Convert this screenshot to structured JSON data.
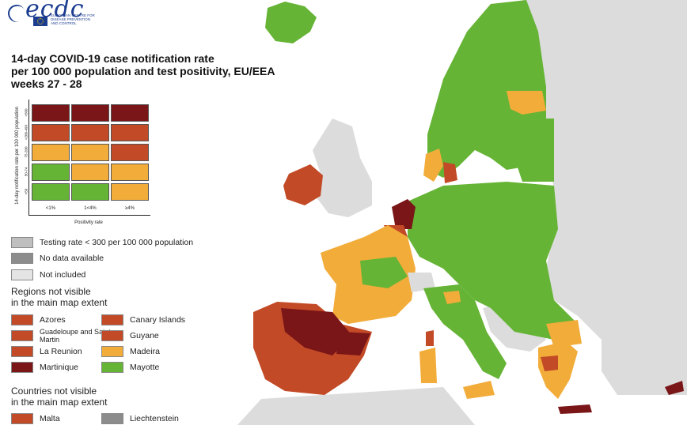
{
  "logo": {
    "text": "ecdc",
    "sub": "EUROPEAN CENTRE FOR DISEASE PREVENTION AND CONTROL"
  },
  "title": {
    "line1": "14-day COVID-19 case notification rate",
    "line2": "per 100 000 population and test positivity, EU/EEA",
    "line3": "weeks 27 - 28"
  },
  "colors": {
    "green": "#66b436",
    "orange": "#f2ac3a",
    "red": "#c24a26",
    "darkred": "#7a1518",
    "testing_low": "#bfbfbf",
    "no_data": "#8c8c8c",
    "not_included": "#e4e4e4",
    "sea": "#ffffff"
  },
  "matrix": {
    "y_axis_label": "14-day notification rate per 100 000 population",
    "x_axis_title": "Positivity rate",
    "rows": [
      ">500",
      ">200-499",
      "75-200",
      "50-74",
      "<50"
    ],
    "cols": [
      "<1%",
      "1<4%",
      "≥4%"
    ],
    "cells": [
      [
        "darkred",
        "darkred",
        "darkred"
      ],
      [
        "red",
        "red",
        "red"
      ],
      [
        "orange",
        "orange",
        "red"
      ],
      [
        "green",
        "orange",
        "orange"
      ],
      [
        "green",
        "green",
        "orange"
      ]
    ]
  },
  "legend": {
    "testing_low": "Testing rate < 300 per 100 000 population",
    "no_data": "No data available",
    "not_included": "Not included"
  },
  "regions": {
    "title_line1": "Regions not visible",
    "title_line2": "in the main map extent",
    "items": [
      {
        "label": "Azores",
        "color": "red"
      },
      {
        "label": "Canary Islands",
        "color": "red"
      },
      {
        "label": "Guadeloupe and Saint Martin",
        "color": "red"
      },
      {
        "label": "Guyane",
        "color": "red"
      },
      {
        "label": "La Reunion",
        "color": "red"
      },
      {
        "label": "Madeira",
        "color": "orange"
      },
      {
        "label": "Martinique",
        "color": "darkred"
      },
      {
        "label": "Mayotte",
        "color": "green"
      }
    ]
  },
  "countries": {
    "title_line1": "Countries not visible",
    "title_line2": "in the main map extent",
    "items": [
      {
        "label": "Malta",
        "color": "red"
      },
      {
        "label": "Liechtenstein",
        "color": "no_data"
      }
    ]
  }
}
